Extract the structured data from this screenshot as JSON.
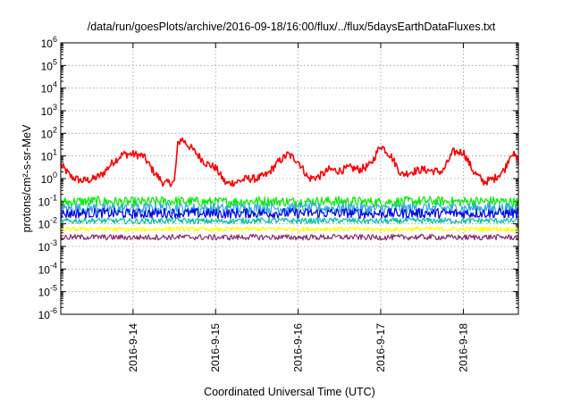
{
  "chart_data": {
    "type": "line",
    "title": "/data/run/goesPlots/archive/2016-09-18/16:00/flux/../flux/5daysEarthDataFluxes.txt",
    "xlabel": "Coordinated Universal Time (UTC)",
    "ylabel": "protons/cm²-s-sr-MeV",
    "scale_y": "log",
    "ylim": [
      1e-06,
      1000000.0
    ],
    "xlim": [
      "2016-09-13 03:00",
      "2016-09-18 16:00"
    ],
    "grid": true,
    "legend": "none",
    "y_ticks": [
      {
        "base": "10",
        "exp": "-6"
      },
      {
        "base": "10",
        "exp": "-5"
      },
      {
        "base": "10",
        "exp": "-4"
      },
      {
        "base": "10",
        "exp": "-3"
      },
      {
        "base": "10",
        "exp": "-2"
      },
      {
        "base": "10",
        "exp": "-1"
      },
      {
        "base": "10",
        "exp": "0"
      },
      {
        "base": "10",
        "exp": "1"
      },
      {
        "base": "10",
        "exp": "2"
      },
      {
        "base": "10",
        "exp": "3"
      },
      {
        "base": "10",
        "exp": "4"
      },
      {
        "base": "10",
        "exp": "5"
      },
      {
        "base": "10",
        "exp": "6"
      }
    ],
    "x_ticks": [
      {
        "value": "2016-09-14 00:00",
        "label": "2016-9-14"
      },
      {
        "value": "2016-09-15 00:00",
        "label": "2016-9-15"
      },
      {
        "value": "2016-09-16 00:00",
        "label": "2016-9-16"
      },
      {
        "value": "2016-09-17 00:00",
        "label": "2016-9-17"
      },
      {
        "value": "2016-09-18 00:00",
        "label": "2016-9-18"
      }
    ],
    "series": [
      {
        "color": "#ff0000",
        "x": [
          "2016-09-13 03:00",
          "2016-09-13 06:00",
          "2016-09-13 09:00",
          "2016-09-13 12:00",
          "2016-09-13 15:00",
          "2016-09-13 18:00",
          "2016-09-13 21:00",
          "2016-09-14 00:00",
          "2016-09-14 03:00",
          "2016-09-14 06:00",
          "2016-09-14 09:00",
          "2016-09-14 12:00",
          "2016-09-14 13:00",
          "2016-09-14 14:00",
          "2016-09-14 18:00",
          "2016-09-14 21:00",
          "2016-09-15 00:00",
          "2016-09-15 03:00",
          "2016-09-15 06:00",
          "2016-09-15 09:00",
          "2016-09-15 12:00",
          "2016-09-15 15:00",
          "2016-09-15 18:00",
          "2016-09-15 21:00",
          "2016-09-16 00:00",
          "2016-09-16 03:00",
          "2016-09-16 06:00",
          "2016-09-16 09:00",
          "2016-09-16 12:00",
          "2016-09-16 15:00",
          "2016-09-16 18:00",
          "2016-09-16 21:00",
          "2016-09-17 00:00",
          "2016-09-17 03:00",
          "2016-09-17 06:00",
          "2016-09-17 09:00",
          "2016-09-17 12:00",
          "2016-09-17 15:00",
          "2016-09-17 18:00",
          "2016-09-17 21:00",
          "2016-09-18 00:00",
          "2016-09-18 03:00",
          "2016-09-18 06:00",
          "2016-09-18 09:00",
          "2016-09-18 12:00",
          "2016-09-18 14:00",
          "2016-09-18 16:00"
        ],
        "values": [
          4,
          1.2,
          0.8,
          0.9,
          1.5,
          5,
          12,
          12,
          10,
          2,
          0.6,
          0.7,
          30,
          60,
          15,
          5,
          3,
          0.6,
          0.7,
          1,
          1,
          1.5,
          5,
          12,
          6,
          1,
          1.2,
          2.5,
          2.2,
          3,
          2.5,
          4,
          30,
          10,
          1.5,
          2,
          2.5,
          2.2,
          2,
          15,
          15,
          2,
          0.7,
          1,
          2.5,
          15,
          6
        ]
      },
      {
        "color": "#00ee00",
        "x": [
          "2016-09-13 03:00",
          "2016-09-13 12:00",
          "2016-09-14 00:00",
          "2016-09-14 12:00",
          "2016-09-15 00:00",
          "2016-09-15 12:00",
          "2016-09-16 00:00",
          "2016-09-16 12:00",
          "2016-09-17 00:00",
          "2016-09-17 12:00",
          "2016-09-18 00:00",
          "2016-09-18 08:00",
          "2016-09-18 16:00"
        ],
        "values": [
          0.09,
          0.1,
          0.09,
          0.1,
          0.09,
          0.1,
          0.095,
          0.1,
          0.09,
          0.1,
          0.095,
          0.1,
          0.09
        ]
      },
      {
        "color": "#2fa8e0",
        "x": [
          "2016-09-13 03:00",
          "2016-09-13 12:00",
          "2016-09-14 00:00",
          "2016-09-14 12:00",
          "2016-09-15 00:00",
          "2016-09-15 12:00",
          "2016-09-16 00:00",
          "2016-09-16 12:00",
          "2016-09-17 00:00",
          "2016-09-17 12:00",
          "2016-09-18 00:00",
          "2016-09-18 08:00",
          "2016-09-18 16:00"
        ],
        "values": [
          0.045,
          0.05,
          0.045,
          0.05,
          0.045,
          0.05,
          0.048,
          0.05,
          0.045,
          0.05,
          0.048,
          0.05,
          0.045
        ]
      },
      {
        "color": "#0000ee",
        "x": [
          "2016-09-13 03:00",
          "2016-09-13 12:00",
          "2016-09-14 00:00",
          "2016-09-14 12:00",
          "2016-09-15 00:00",
          "2016-09-15 12:00",
          "2016-09-16 00:00",
          "2016-09-16 12:00",
          "2016-09-17 00:00",
          "2016-09-17 12:00",
          "2016-09-18 00:00",
          "2016-09-18 08:00",
          "2016-09-18 16:00"
        ],
        "values": [
          0.028,
          0.03,
          0.028,
          0.03,
          0.028,
          0.03,
          0.029,
          0.03,
          0.028,
          0.03,
          0.029,
          0.03,
          0.028
        ]
      },
      {
        "color": "#00c0a0",
        "x": [
          "2016-09-13 03:00",
          "2016-09-13 12:00",
          "2016-09-14 00:00",
          "2016-09-14 12:00",
          "2016-09-15 00:00",
          "2016-09-15 12:00",
          "2016-09-16 00:00",
          "2016-09-16 12:00",
          "2016-09-17 00:00",
          "2016-09-17 12:00",
          "2016-09-18 00:00",
          "2016-09-18 08:00",
          "2016-09-18 16:00"
        ],
        "values": [
          0.013,
          0.014,
          0.013,
          0.014,
          0.013,
          0.014,
          0.0135,
          0.014,
          0.013,
          0.014,
          0.0135,
          0.014,
          0.013
        ]
      },
      {
        "color": "#ffff00",
        "x": [
          "2016-09-13 03:00",
          "2016-09-13 12:00",
          "2016-09-14 00:00",
          "2016-09-14 12:00",
          "2016-09-15 00:00",
          "2016-09-15 12:00",
          "2016-09-16 00:00",
          "2016-09-16 12:00",
          "2016-09-17 00:00",
          "2016-09-17 12:00",
          "2016-09-18 00:00",
          "2016-09-18 08:00",
          "2016-09-18 16:00"
        ],
        "values": [
          0.0055,
          0.006,
          0.0055,
          0.006,
          0.0055,
          0.006,
          0.0057,
          0.006,
          0.0055,
          0.006,
          0.0057,
          0.006,
          0.0055
        ]
      },
      {
        "color": "#8b2a6e",
        "x": [
          "2016-09-13 03:00",
          "2016-09-13 12:00",
          "2016-09-14 00:00",
          "2016-09-14 12:00",
          "2016-09-15 00:00",
          "2016-09-15 12:00",
          "2016-09-16 00:00",
          "2016-09-16 12:00",
          "2016-09-17 00:00",
          "2016-09-17 12:00",
          "2016-09-18 00:00",
          "2016-09-18 08:00",
          "2016-09-18 16:00"
        ],
        "values": [
          0.0025,
          0.0026,
          0.0025,
          0.0026,
          0.0025,
          0.0026,
          0.0025,
          0.0026,
          0.0025,
          0.0026,
          0.0025,
          0.0026,
          0.0025
        ]
      }
    ]
  }
}
